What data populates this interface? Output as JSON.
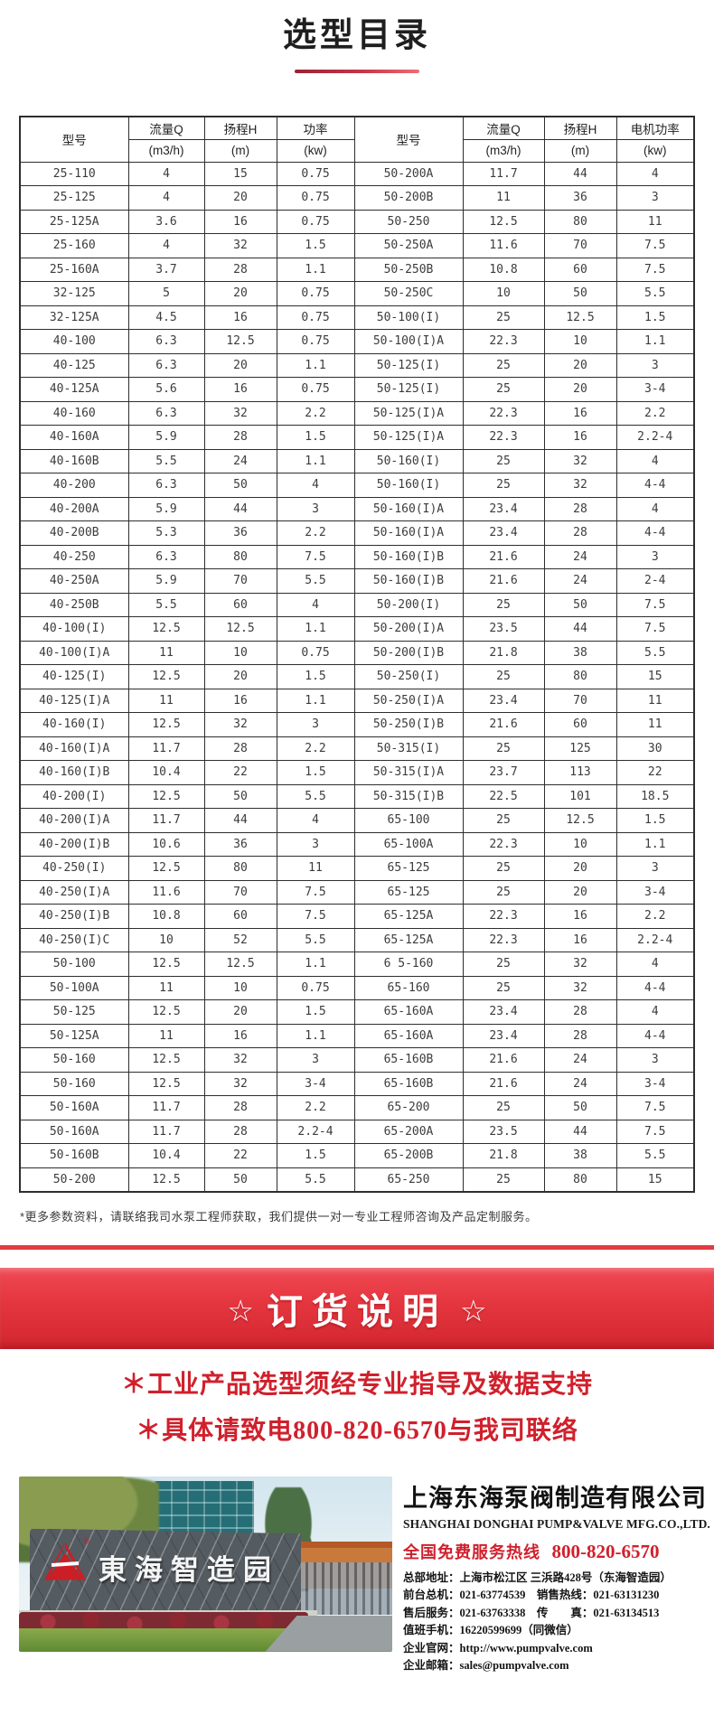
{
  "title": "选型目录",
  "table": {
    "col_headers": [
      {
        "label": "型号",
        "unit": ""
      },
      {
        "label": "流量Q",
        "unit": "(m3/h)"
      },
      {
        "label": "扬程H",
        "unit": "(m)"
      },
      {
        "label": "功率",
        "unit": "(kw)"
      },
      {
        "label": "型号",
        "unit": ""
      },
      {
        "label": "流量Q",
        "unit": "(m3/h)"
      },
      {
        "label": "扬程H",
        "unit": "(m)"
      },
      {
        "label": "电机功率",
        "unit": "(kw)"
      }
    ],
    "rows": [
      [
        "25-110",
        "4",
        "15",
        "0.75",
        "50-200A",
        "11.7",
        "44",
        "4"
      ],
      [
        "25-125",
        "4",
        "20",
        "0.75",
        "50-200B",
        "11",
        "36",
        "3"
      ],
      [
        "25-125A",
        "3.6",
        "16",
        "0.75",
        "50-250",
        "12.5",
        "80",
        "11"
      ],
      [
        "25-160",
        "4",
        "32",
        "1.5",
        "50-250A",
        "11.6",
        "70",
        "7.5"
      ],
      [
        "25-160A",
        "3.7",
        "28",
        "1.1",
        "50-250B",
        "10.8",
        "60",
        "7.5"
      ],
      [
        "32-125",
        "5",
        "20",
        "0.75",
        "50-250C",
        "10",
        "50",
        "5.5"
      ],
      [
        "32-125A",
        "4.5",
        "16",
        "0.75",
        "50-100(I)",
        "25",
        "12.5",
        "1.5"
      ],
      [
        "40-100",
        "6.3",
        "12.5",
        "0.75",
        "50-100(I)A",
        "22.3",
        "10",
        "1.1"
      ],
      [
        "40-125",
        "6.3",
        "20",
        "1.1",
        "50-125(I)",
        "25",
        "20",
        "3"
      ],
      [
        "40-125A",
        "5.6",
        "16",
        "0.75",
        "50-125(I)",
        "25",
        "20",
        "3-4"
      ],
      [
        "40-160",
        "6.3",
        "32",
        "2.2",
        "50-125(I)A",
        "22.3",
        "16",
        "2.2"
      ],
      [
        "40-160A",
        "5.9",
        "28",
        "1.5",
        "50-125(I)A",
        "22.3",
        "16",
        "2.2-4"
      ],
      [
        "40-160B",
        "5.5",
        "24",
        "1.1",
        "50-160(I)",
        "25",
        "32",
        "4"
      ],
      [
        "40-200",
        "6.3",
        "50",
        "4",
        "50-160(I)",
        "25",
        "32",
        "4-4"
      ],
      [
        "40-200A",
        "5.9",
        "44",
        "3",
        "50-160(I)A",
        "23.4",
        "28",
        "4"
      ],
      [
        "40-200B",
        "5.3",
        "36",
        "2.2",
        "50-160(I)A",
        "23.4",
        "28",
        "4-4"
      ],
      [
        "40-250",
        "6.3",
        "80",
        "7.5",
        "50-160(I)B",
        "21.6",
        "24",
        "3"
      ],
      [
        "40-250A",
        "5.9",
        "70",
        "5.5",
        "50-160(I)B",
        "21.6",
        "24",
        "2-4"
      ],
      [
        "40-250B",
        "5.5",
        "60",
        "4",
        "50-200(I)",
        "25",
        "50",
        "7.5"
      ],
      [
        "40-100(I)",
        "12.5",
        "12.5",
        "1.1",
        "50-200(I)A",
        "23.5",
        "44",
        "7.5"
      ],
      [
        "40-100(I)A",
        "11",
        "10",
        "0.75",
        "50-200(I)B",
        "21.8",
        "38",
        "5.5"
      ],
      [
        "40-125(I)",
        "12.5",
        "20",
        "1.5",
        "50-250(I)",
        "25",
        "80",
        "15"
      ],
      [
        "40-125(I)A",
        "11",
        "16",
        "1.1",
        "50-250(I)A",
        "23.4",
        "70",
        "11"
      ],
      [
        "40-160(I)",
        "12.5",
        "32",
        "3",
        "50-250(I)B",
        "21.6",
        "60",
        "11"
      ],
      [
        "40-160(I)A",
        "11.7",
        "28",
        "2.2",
        "50-315(I)",
        "25",
        "125",
        "30"
      ],
      [
        "40-160(I)B",
        "10.4",
        "22",
        "1.5",
        "50-315(I)A",
        "23.7",
        "113",
        "22"
      ],
      [
        "40-200(I)",
        "12.5",
        "50",
        "5.5",
        "50-315(I)B",
        "22.5",
        "101",
        "18.5"
      ],
      [
        "40-200(I)A",
        "11.7",
        "44",
        "4",
        "65-100",
        "25",
        "12.5",
        "1.5"
      ],
      [
        "40-200(I)B",
        "10.6",
        "36",
        "3",
        "65-100A",
        "22.3",
        "10",
        "1.1"
      ],
      [
        "40-250(I)",
        "12.5",
        "80",
        "11",
        "65-125",
        "25",
        "20",
        "3"
      ],
      [
        "40-250(I)A",
        "11.6",
        "70",
        "7.5",
        "65-125",
        "25",
        "20",
        "3-4"
      ],
      [
        "40-250(I)B",
        "10.8",
        "60",
        "7.5",
        "65-125A",
        "22.3",
        "16",
        "2.2"
      ],
      [
        "40-250(I)C",
        "10",
        "52",
        "5.5",
        "65-125A",
        "22.3",
        "16",
        "2.2-4"
      ],
      [
        "50-100",
        "12.5",
        "12.5",
        "1.1",
        "6 5-160",
        "25",
        "32",
        "4"
      ],
      [
        "50-100A",
        "11",
        "10",
        "0.75",
        "65-160",
        "25",
        "32",
        "4-4"
      ],
      [
        "50-125",
        "12.5",
        "20",
        "1.5",
        "65-160A",
        "23.4",
        "28",
        "4"
      ],
      [
        "50-125A",
        "11",
        "16",
        "1.1",
        "65-160A",
        "23.4",
        "28",
        "4-4"
      ],
      [
        "50-160",
        "12.5",
        "32",
        "3",
        "65-160B",
        "21.6",
        "24",
        "3"
      ],
      [
        "50-160",
        "12.5",
        "32",
        "3-4",
        "65-160B",
        "21.6",
        "24",
        "3-4"
      ],
      [
        "50-160A",
        "11.7",
        "28",
        "2.2",
        "65-200",
        "25",
        "50",
        "7.5"
      ],
      [
        "50-160A",
        "11.7",
        "28",
        "2.2-4",
        "65-200A",
        "23.5",
        "44",
        "7.5"
      ],
      [
        "50-160B",
        "10.4",
        "22",
        "1.5",
        "65-200B",
        "21.8",
        "38",
        "5.5"
      ],
      [
        "50-200",
        "12.5",
        "50",
        "5.5",
        "65-250",
        "25",
        "80",
        "15"
      ]
    ]
  },
  "note": "*更多参数资料，请联络我司水泵工程师获取，我们提供一对一专业工程师咨询及产品定制服务。",
  "banner": {
    "star_left": "☆",
    "title": "订货说明",
    "star_right": "☆"
  },
  "notice_lines": [
    "＊工业产品选型须经专业指导及数据支持",
    "＊具体请致电800-820-6570与我司联络"
  ],
  "photo": {
    "sign_text": "東海智造园",
    "logo_mark": "®"
  },
  "company": {
    "name_cn": "上海东海泵阀制造有限公司",
    "name_en": "SHANGHAI DONGHAI PUMP&VALVE MFG.CO.,LTD.",
    "hotline_label": "全国免费服务热线",
    "hotline_number": "800-820-6570",
    "info_lines": [
      "总部地址：上海市松江区 三浜路428号（东海智造园）",
      "前台总机：021-63774539　销售热线：021-63131230",
      "售后服务：021-63763338　传　　真：021-63134513",
      "值班手机：16220599699（同微信）",
      "企业官网：http://www.pumpvalve.com",
      "企业邮箱：sales@pumpvalve.com"
    ]
  },
  "colors": {
    "accent_red": "#d0202c",
    "banner_red_top": "#ef4954",
    "banner_red_bottom": "#d2262f",
    "strip_red": "#e23b44",
    "table_border": "#2e2e2e",
    "title_text": "#1f1f1f"
  }
}
